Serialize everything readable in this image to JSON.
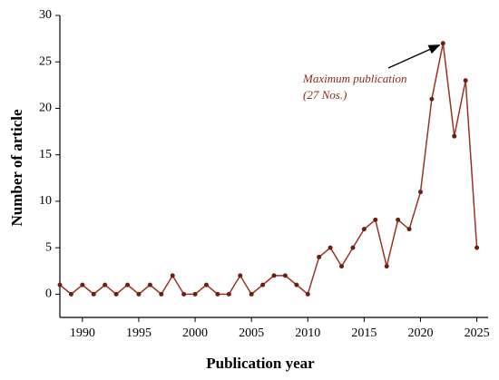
{
  "chart_data": {
    "type": "line",
    "x_label": "Publication year",
    "y_label": "Number of article",
    "annotation": [
      "Maximum publication",
      "(27 Nos.)"
    ],
    "annotation_target": {
      "x": 2022,
      "y": 27
    },
    "x": [
      1988,
      1989,
      1990,
      1991,
      1992,
      1993,
      1994,
      1995,
      1996,
      1997,
      1998,
      1999,
      2000,
      2001,
      2002,
      2003,
      2004,
      2005,
      2006,
      2007,
      2008,
      2009,
      2010,
      2011,
      2012,
      2013,
      2014,
      2015,
      2016,
      2017,
      2018,
      2019,
      2020,
      2021,
      2022,
      2023,
      2024,
      2025
    ],
    "series": [
      {
        "color": "#9a3324",
        "values": [
          1,
          0,
          1,
          0,
          1,
          0,
          1,
          0,
          1,
          0,
          2,
          0,
          0,
          1,
          0,
          0,
          2,
          0,
          1,
          2,
          2,
          1,
          0,
          4,
          5,
          3,
          5,
          7,
          8,
          3,
          8,
          7,
          11,
          21,
          27,
          17,
          23,
          5
        ]
      }
    ],
    "xlim": [
      1988,
      2026
    ],
    "xticks": [
      1990,
      1995,
      2000,
      2005,
      2010,
      2015,
      2020,
      2025
    ],
    "ylim": [
      -2.5,
      30
    ],
    "yticks": [
      0,
      5,
      10,
      15,
      20,
      25,
      30
    ]
  }
}
